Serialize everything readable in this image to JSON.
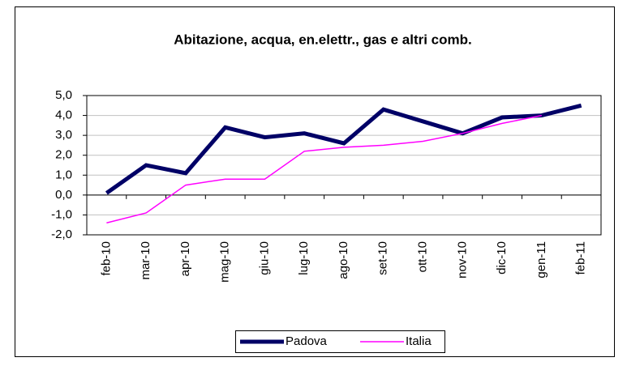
{
  "chart_data": {
    "type": "line",
    "title": "Abitazione, acqua, en.elettr., gas e altri comb.",
    "categories": [
      "feb-10",
      "mar-10",
      "apr-10",
      "mag-10",
      "giu-10",
      "lug-10",
      "ago-10",
      "set-10",
      "ott-10",
      "nov-10",
      "dic-10",
      "gen-11",
      "feb-11"
    ],
    "series": [
      {
        "name": "Padova",
        "color": "#000066",
        "values": [
          0.1,
          1.5,
          1.1,
          3.4,
          2.9,
          3.1,
          2.6,
          4.3,
          3.7,
          3.1,
          3.9,
          4.0,
          4.5
        ]
      },
      {
        "name": "Italia",
        "color": "#ff00ff",
        "values": [
          -1.4,
          -0.9,
          0.5,
          0.8,
          0.8,
          2.2,
          2.4,
          2.5,
          2.7,
          3.1,
          3.6,
          4.0,
          null
        ]
      }
    ],
    "ylim": [
      -2,
      5
    ],
    "yticks": [
      {
        "value": -2,
        "label": "-2,0"
      },
      {
        "value": -1,
        "label": "-1,0"
      },
      {
        "value": 0,
        "label": "0,0"
      },
      {
        "value": 1,
        "label": "1,0"
      },
      {
        "value": 2,
        "label": "2,0"
      },
      {
        "value": 3,
        "label": "3,0"
      },
      {
        "value": 4,
        "label": "4,0"
      },
      {
        "value": 5,
        "label": "5,0"
      }
    ],
    "grid": true,
    "legend": "bottom"
  }
}
